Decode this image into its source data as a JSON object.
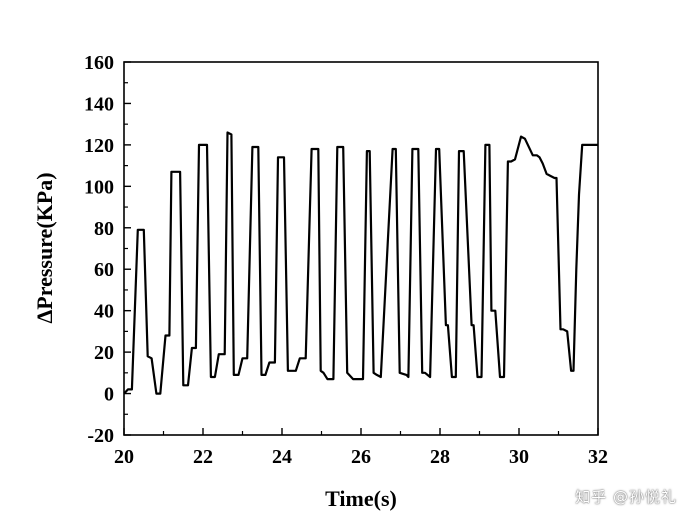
{
  "chart_data": {
    "type": "line",
    "xlabel": "Time(s)",
    "ylabel": "ΔPressure(KPa)",
    "xlim": [
      20,
      32
    ],
    "ylim": [
      -20,
      160
    ],
    "xticks": [
      20,
      22,
      24,
      26,
      28,
      30,
      32
    ],
    "yticks": [
      -20,
      0,
      20,
      40,
      60,
      80,
      100,
      120,
      140,
      160
    ],
    "grid": false,
    "color": "#000000",
    "series": [
      {
        "x": [
          20.0,
          20.1,
          20.2,
          20.35,
          20.5,
          20.6,
          20.7,
          20.82,
          20.92,
          21.05,
          21.15,
          21.2,
          21.42,
          21.5,
          21.62,
          21.72,
          21.82,
          21.9,
          22.1,
          22.2,
          22.3,
          22.4,
          22.55,
          22.62,
          22.72,
          22.78,
          22.9,
          23.0,
          23.12,
          23.25,
          23.4,
          23.48,
          23.58,
          23.68,
          23.82,
          23.9,
          24.05,
          24.15,
          24.35,
          24.45,
          24.6,
          24.75,
          24.92,
          24.98,
          25.05,
          25.15,
          25.3,
          25.4,
          25.55,
          25.65,
          25.8,
          26.05,
          26.15,
          26.22,
          26.32,
          26.4,
          26.5,
          26.8,
          26.88,
          26.98,
          27.15,
          27.2,
          27.3,
          27.45,
          27.55,
          27.62,
          27.75,
          27.9,
          27.98,
          28.15,
          28.2,
          28.3,
          28.4,
          28.48,
          28.6,
          28.8,
          28.85,
          28.95,
          29.05,
          29.15,
          29.25,
          29.3,
          29.4,
          29.52,
          29.62,
          29.72,
          29.8,
          29.9,
          30.05,
          30.15,
          30.35,
          30.45,
          30.52,
          30.6,
          30.7,
          30.8,
          30.9,
          30.95,
          31.05,
          31.12,
          31.22,
          31.32,
          31.38,
          31.45,
          31.52,
          31.6,
          31.7,
          31.8,
          31.85,
          31.92,
          31.95,
          32.0
        ],
        "y": [
          0,
          2,
          2,
          79,
          79,
          18,
          17,
          0,
          0,
          28,
          28,
          107,
          107,
          4,
          4,
          22,
          22,
          120,
          120,
          8,
          8,
          19,
          19,
          126,
          125,
          9,
          9,
          17,
          17,
          119,
          119,
          9,
          9,
          15,
          15,
          114,
          114,
          11,
          11,
          17,
          17,
          118,
          118,
          11,
          10,
          7,
          7,
          119,
          119,
          10,
          7,
          7,
          117,
          117,
          10,
          9,
          8,
          118,
          118,
          10,
          9,
          8,
          118,
          118,
          10,
          10,
          8,
          118,
          118,
          33,
          33,
          8,
          8,
          117,
          117,
          33,
          33,
          8,
          8,
          120,
          120,
          40,
          40,
          8,
          8,
          112,
          112,
          113,
          124,
          123,
          115,
          115,
          114,
          111,
          106,
          105,
          104,
          104,
          31,
          31,
          30,
          11,
          11,
          60,
          96,
          120,
          120,
          120,
          120,
          120,
          120,
          120
        ]
      }
    ]
  },
  "watermark": "知乎 @孙悦礼"
}
